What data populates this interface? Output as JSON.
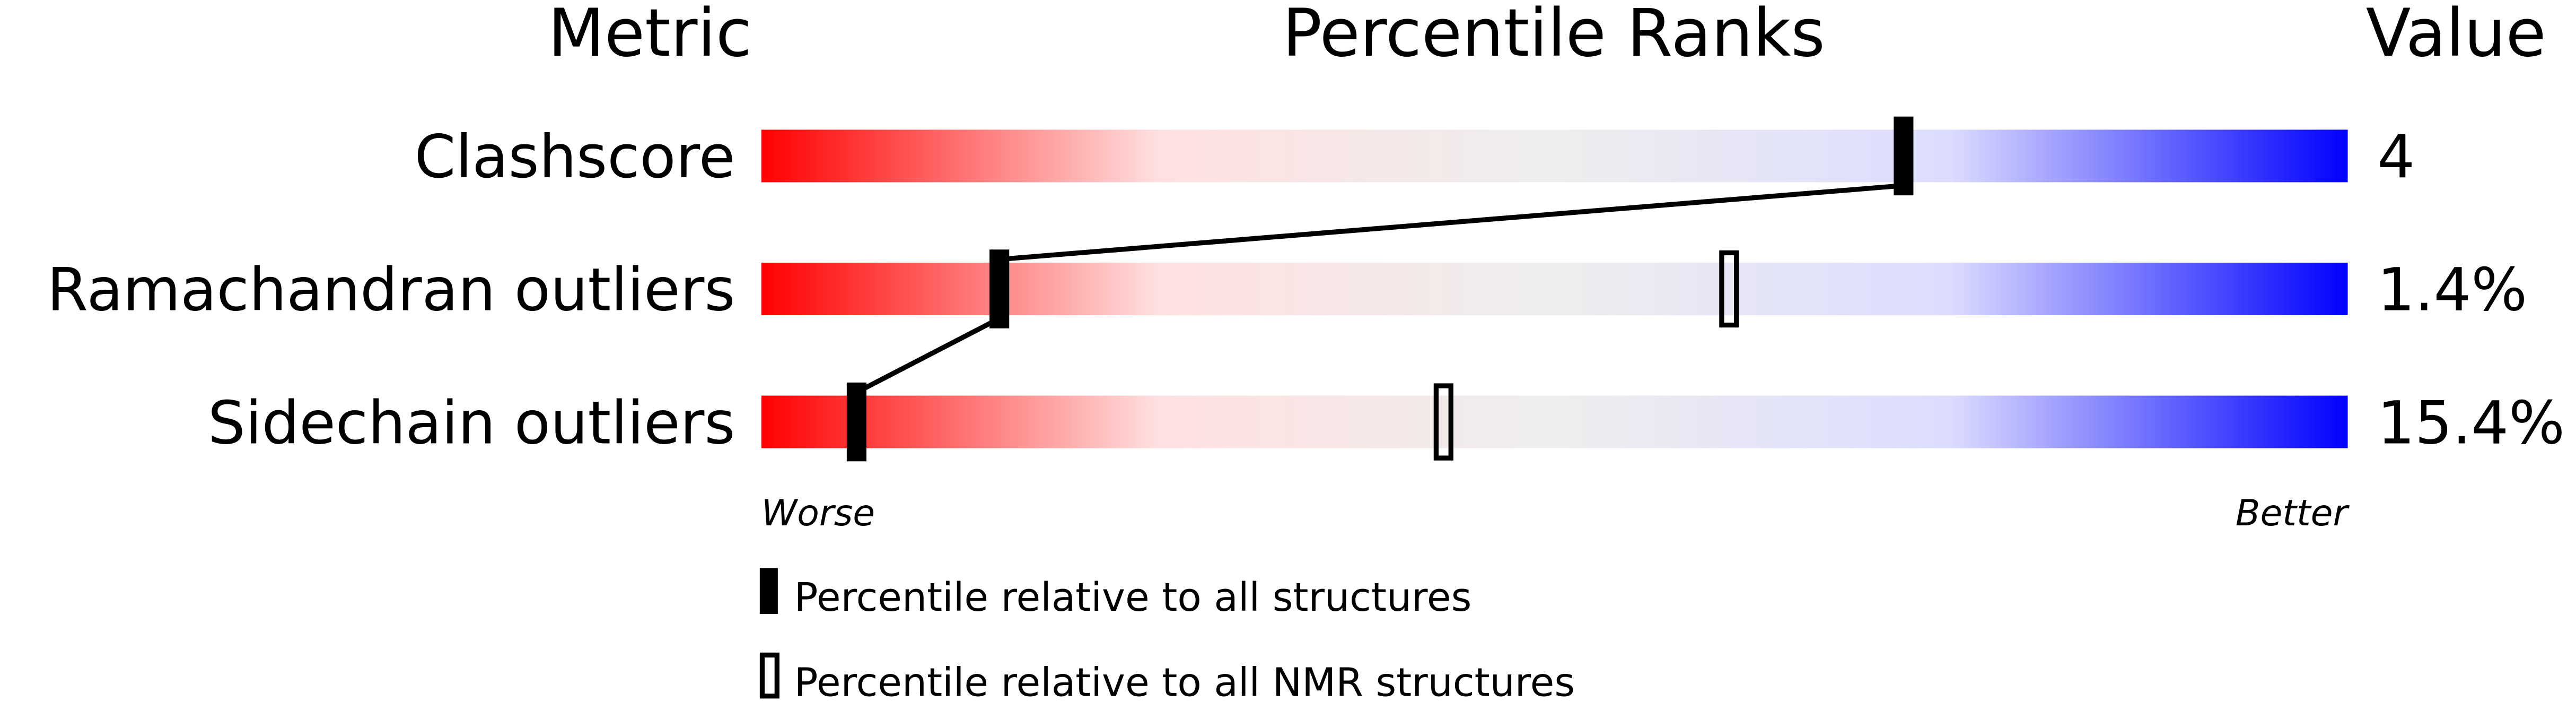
{
  "chart_data": {
    "type": "table",
    "headers": {
      "metric": "Metric",
      "ranks": "Percentile Ranks",
      "value": "Value"
    },
    "x_range": [
      0,
      100
    ],
    "gradient_colors": [
      "#ff0000",
      "#ffe0e0",
      "#eeeeee",
      "#dcdcff",
      "#0000ff"
    ],
    "rows": [
      {
        "metric": "Clashscore",
        "value": "4",
        "percentile_all": 72,
        "percentile_nmr": null
      },
      {
        "metric": "Ramachandran outliers",
        "value": "1.4%",
        "percentile_all": 15,
        "percentile_nmr": 61
      },
      {
        "metric": "Sidechain outliers",
        "value": "15.4%",
        "percentile_all": 6,
        "percentile_nmr": 43
      }
    ],
    "axis_labels": {
      "left": "Worse",
      "right": "Better"
    },
    "legend": [
      {
        "marker": "filled",
        "label": "Percentile relative to all structures"
      },
      {
        "marker": "open",
        "label": "Percentile relative to all NMR structures"
      }
    ]
  }
}
